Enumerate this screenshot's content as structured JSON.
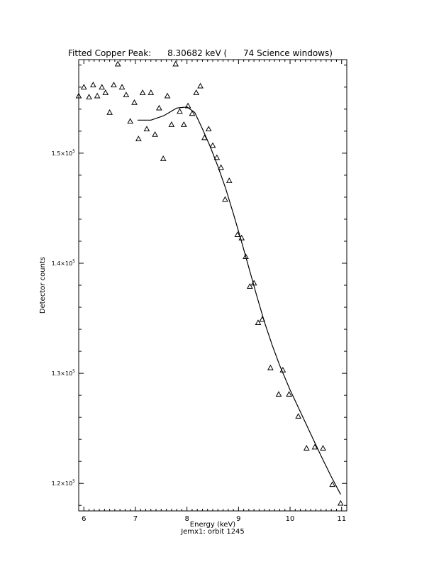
{
  "chart_data": {
    "type": "scatter",
    "title": "Fitted Copper Peak:      8.30682 keV (      74 Science windows)",
    "xlabel": "Energy (keV)",
    "ylabel": "Detector counts",
    "subtitle": "Jemx1: orbit 1245",
    "xlim": [
      5.9,
      11.1
    ],
    "ylim": [
      117500,
      158500
    ],
    "x_ticks": [
      {
        "value": 6,
        "label": "6"
      },
      {
        "value": 7,
        "label": "7"
      },
      {
        "value": 8,
        "label": "8"
      },
      {
        "value": 9,
        "label": "9"
      },
      {
        "value": 10,
        "label": "10"
      },
      {
        "value": 11,
        "label": "11"
      }
    ],
    "y_ticks": [
      {
        "value": 120000,
        "label": "1.2×10",
        "exp": "5"
      },
      {
        "value": 130000,
        "label": "1.3×10",
        "exp": "5"
      },
      {
        "value": 140000,
        "label": "1.4×10",
        "exp": "5"
      },
      {
        "value": 150000,
        "label": "1.5×10",
        "exp": "5"
      }
    ],
    "grid": false,
    "series": [
      {
        "type": "scatter",
        "marker": "triangle",
        "points": [
          [
            5.9,
            155200
          ],
          [
            6.0,
            156000
          ],
          [
            6.1,
            155100
          ],
          [
            6.18,
            156200
          ],
          [
            6.26,
            155200
          ],
          [
            6.35,
            156000
          ],
          [
            6.42,
            155500
          ],
          [
            6.5,
            153700
          ],
          [
            6.58,
            156200
          ],
          [
            6.66,
            158100
          ],
          [
            6.74,
            156000
          ],
          [
            6.82,
            155300
          ],
          [
            6.9,
            152900
          ],
          [
            6.98,
            154600
          ],
          [
            7.06,
            151300
          ],
          [
            7.14,
            155500
          ],
          [
            7.22,
            152200
          ],
          [
            7.3,
            155500
          ],
          [
            7.38,
            151700
          ],
          [
            7.46,
            154100
          ],
          [
            7.54,
            149500
          ],
          [
            7.62,
            155200
          ],
          [
            7.7,
            152600
          ],
          [
            7.78,
            158100
          ],
          [
            7.86,
            153800
          ],
          [
            7.94,
            152600
          ],
          [
            8.02,
            154300
          ],
          [
            8.1,
            153600
          ],
          [
            8.18,
            155500
          ],
          [
            8.26,
            156100
          ],
          [
            8.34,
            151400
          ],
          [
            8.42,
            152200
          ],
          [
            8.5,
            150700
          ],
          [
            8.58,
            149600
          ],
          [
            8.66,
            148700
          ],
          [
            8.74,
            145800
          ],
          [
            8.82,
            147500
          ],
          [
            8.98,
            142600
          ],
          [
            9.06,
            142300
          ],
          [
            9.14,
            140600
          ],
          [
            9.22,
            137900
          ],
          [
            9.3,
            138200
          ],
          [
            9.38,
            134600
          ],
          [
            9.46,
            134900
          ],
          [
            9.62,
            130500
          ],
          [
            9.78,
            128100
          ],
          [
            9.86,
            130300
          ],
          [
            9.98,
            128100
          ],
          [
            10.16,
            126100
          ],
          [
            10.32,
            123200
          ],
          [
            10.48,
            123300
          ],
          [
            10.64,
            123200
          ],
          [
            10.82,
            119900
          ],
          [
            10.98,
            118200
          ]
        ]
      },
      {
        "type": "line",
        "points": [
          [
            7.04,
            153000
          ],
          [
            7.3,
            153000
          ],
          [
            7.55,
            153400
          ],
          [
            7.8,
            154100
          ],
          [
            8.0,
            154200
          ],
          [
            8.15,
            153700
          ],
          [
            8.3,
            152200
          ],
          [
            8.45,
            150600
          ],
          [
            8.6,
            148800
          ],
          [
            8.75,
            146800
          ],
          [
            8.9,
            144500
          ],
          [
            9.05,
            142100
          ],
          [
            9.2,
            139600
          ],
          [
            9.35,
            137100
          ],
          [
            9.5,
            134700
          ],
          [
            9.65,
            132600
          ],
          [
            9.8,
            130700
          ],
          [
            10.0,
            128500
          ],
          [
            10.2,
            126500
          ],
          [
            10.4,
            124500
          ],
          [
            10.6,
            122500
          ],
          [
            10.8,
            120600
          ],
          [
            10.98,
            119000
          ]
        ]
      }
    ]
  }
}
